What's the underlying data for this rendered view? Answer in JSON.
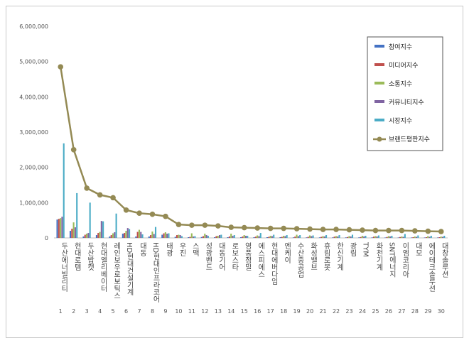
{
  "chart_data": {
    "type": "bar",
    "title": "",
    "xlabel": "",
    "ylabel": "",
    "ylim": [
      0,
      6000000
    ],
    "yticks": [
      "0",
      "1,000,000",
      "2,000,000",
      "3,000,000",
      "4,000,000",
      "5,000,000",
      "6,000,000"
    ],
    "ytick_values": [
      0,
      1000000,
      2000000,
      3000000,
      4000000,
      5000000,
      6000000
    ],
    "grid": false,
    "legend_position": "top-right",
    "categories": [
      "두산에너빌리티",
      "현대로템",
      "두산밥캣",
      "현대엘리베이터",
      "레인보우로보틱스",
      "HD현대건설기계",
      "대동",
      "HD현대인프라코어",
      "태광",
      "우진",
      "스맥",
      "성광벤드",
      "대동기어",
      "로보스타",
      "영풍정밀",
      "에스피에스",
      "현대에버다임",
      "엔케이",
      "수산중공업",
      "화성밸브",
      "휴림로봇",
      "한신기계",
      "광림",
      "TYM",
      "화천기계",
      "SNT에너지",
      "이엠코리아",
      "대모",
      "에이테크솔루션",
      "대창솔루션"
    ],
    "ranks": [
      "1",
      "2",
      "3",
      "4",
      "5",
      "6",
      "7",
      "8",
      "9",
      "10",
      "11",
      "12",
      "13",
      "14",
      "15",
      "16",
      "17",
      "18",
      "19",
      "20",
      "21",
      "22",
      "23",
      "24",
      "25",
      "26",
      "27",
      "28",
      "29",
      "30"
    ],
    "series": [
      {
        "name": "참여지수",
        "color": "#4472c4",
        "values": [
          520000,
          200000,
          40000,
          80000,
          40000,
          120000,
          40000,
          40000,
          90000,
          30000,
          20000,
          25000,
          20000,
          20000,
          20000,
          20000,
          20000,
          20000,
          15000,
          15000,
          15000,
          15000,
          15000,
          15000,
          15000,
          12000,
          12000,
          12000,
          12000,
          12000
        ]
      },
      {
        "name": "미디어지수",
        "color": "#c0504d",
        "values": [
          540000,
          260000,
          90000,
          140000,
          80000,
          140000,
          170000,
          80000,
          130000,
          80000,
          30000,
          50000,
          50000,
          40000,
          40000,
          35000,
          30000,
          30000,
          35000,
          30000,
          30000,
          35000,
          25000,
          25000,
          35000,
          25000,
          25000,
          20000,
          20000,
          20000
        ]
      },
      {
        "name": "소통지수",
        "color": "#9bbb59",
        "values": [
          560000,
          440000,
          120000,
          170000,
          130000,
          200000,
          230000,
          180000,
          160000,
          90000,
          130000,
          120000,
          60000,
          120000,
          80000,
          70000,
          60000,
          60000,
          90000,
          70000,
          50000,
          50000,
          50000,
          60000,
          50000,
          50000,
          40000,
          40000,
          50000,
          40000
        ]
      },
      {
        "name": "커뮤니티지수",
        "color": "#8064a2",
        "values": [
          600000,
          300000,
          140000,
          480000,
          160000,
          280000,
          170000,
          110000,
          120000,
          80000,
          40000,
          80000,
          80000,
          60000,
          60000,
          50000,
          50000,
          50000,
          50000,
          50000,
          40000,
          40000,
          40000,
          40000,
          40000,
          40000,
          30000,
          30000,
          30000,
          30000
        ]
      },
      {
        "name": "시장지수",
        "color": "#4bacc6",
        "values": [
          2680000,
          1270000,
          1000000,
          470000,
          690000,
          250000,
          100000,
          310000,
          130000,
          50000,
          50000,
          60000,
          90000,
          80000,
          60000,
          140000,
          90000,
          80000,
          80000,
          70000,
          80000,
          80000,
          90000,
          60000,
          70000,
          60000,
          110000,
          70000,
          60000,
          60000
        ]
      }
    ],
    "line": {
      "name": "브랜드평판지수",
      "color": "#948a54",
      "values": [
        4850000,
        2500000,
        1410000,
        1220000,
        1140000,
        790000,
        700000,
        670000,
        610000,
        380000,
        360000,
        360000,
        340000,
        300000,
        290000,
        280000,
        270000,
        270000,
        260000,
        250000,
        240000,
        240000,
        230000,
        220000,
        210000,
        210000,
        210000,
        200000,
        190000,
        180000
      ]
    }
  }
}
